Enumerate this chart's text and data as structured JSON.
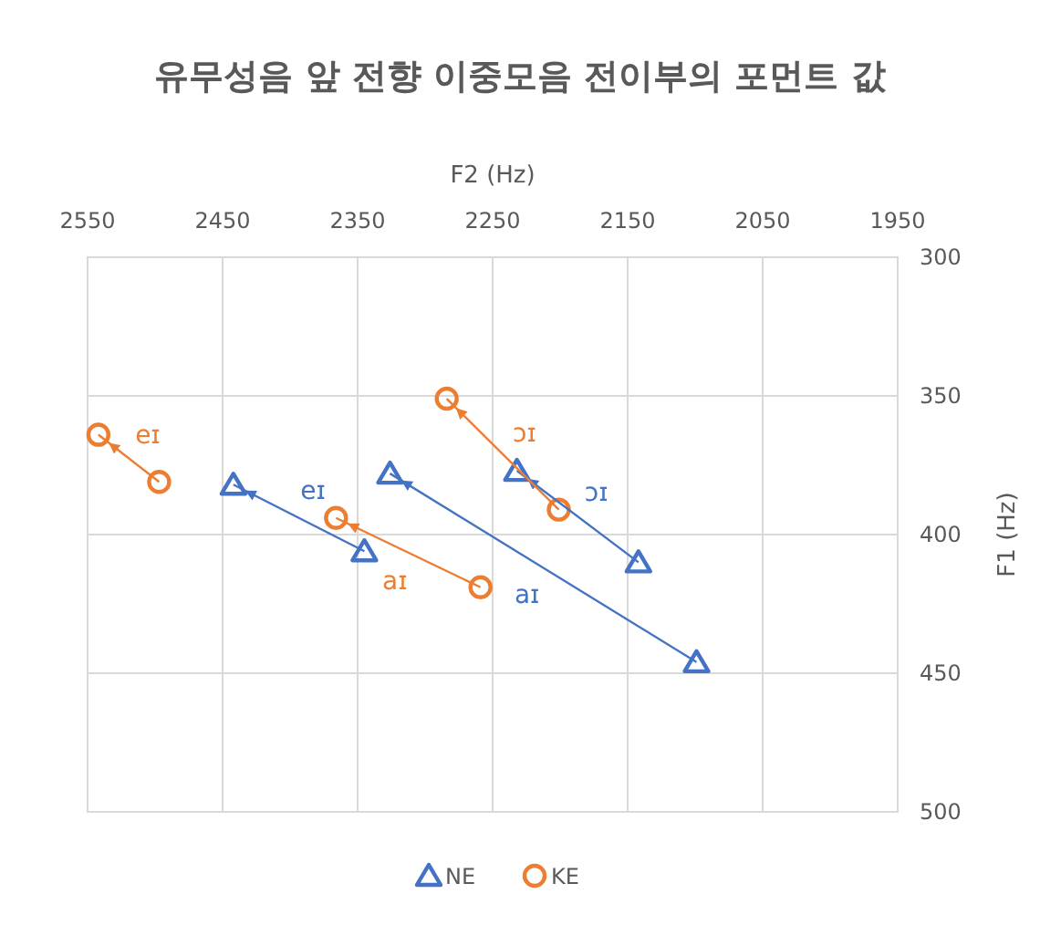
{
  "chart_data": {
    "type": "scatter",
    "title": "유무성음 앞 전향 이중모음 전이부의 포먼트 값",
    "xlabel": "F2 (Hz)",
    "ylabel": "F1 (Hz)",
    "xlim": [
      2550,
      1950
    ],
    "xticks": [
      2550,
      2450,
      2350,
      2250,
      2150,
      2050,
      1950
    ],
    "ylim": [
      500,
      300
    ],
    "yticks": [
      300,
      350,
      400,
      450,
      500
    ],
    "grid": true,
    "legend": "bottom",
    "series": [
      {
        "name": "NE",
        "type": "scatter",
        "marker": "triangle",
        "color": "#4472c4",
        "x": [
          2442,
          2345,
          2326,
          2099,
          2232,
          2142
        ],
        "values": [
          382,
          406,
          378,
          446,
          377,
          410
        ]
      },
      {
        "name": "KE",
        "type": "scatter",
        "marker": "circle",
        "color": "#ed7d31",
        "x": [
          2542,
          2497,
          2366,
          2259,
          2284,
          2201
        ],
        "values": [
          364,
          381,
          394,
          419,
          351,
          391
        ]
      },
      {
        "name": "eɪ",
        "type": "line",
        "color": "#4472c4",
        "x": [
          2345,
          2442
        ],
        "values": [
          406,
          382
        ]
      },
      {
        "name": "aɪ",
        "type": "line",
        "color": "#4472c4",
        "x": [
          2099,
          2326
        ],
        "values": [
          446,
          378
        ]
      },
      {
        "name": "ɔɪ",
        "type": "line",
        "color": "#4472c4",
        "x": [
          2142,
          2232
        ],
        "values": [
          410,
          377
        ]
      },
      {
        "name": "eɪ",
        "type": "line",
        "color": "#ed7d31",
        "x": [
          2497,
          2542
        ],
        "values": [
          381,
          364
        ]
      },
      {
        "name": "aɪ",
        "type": "line",
        "color": "#ed7d31",
        "x": [
          2259,
          2366
        ],
        "values": [
          419,
          394
        ]
      },
      {
        "name": "ɔɪ",
        "type": "line",
        "color": "#ed7d31",
        "x": [
          2201,
          2284
        ],
        "values": [
          391,
          351
        ]
      }
    ]
  }
}
